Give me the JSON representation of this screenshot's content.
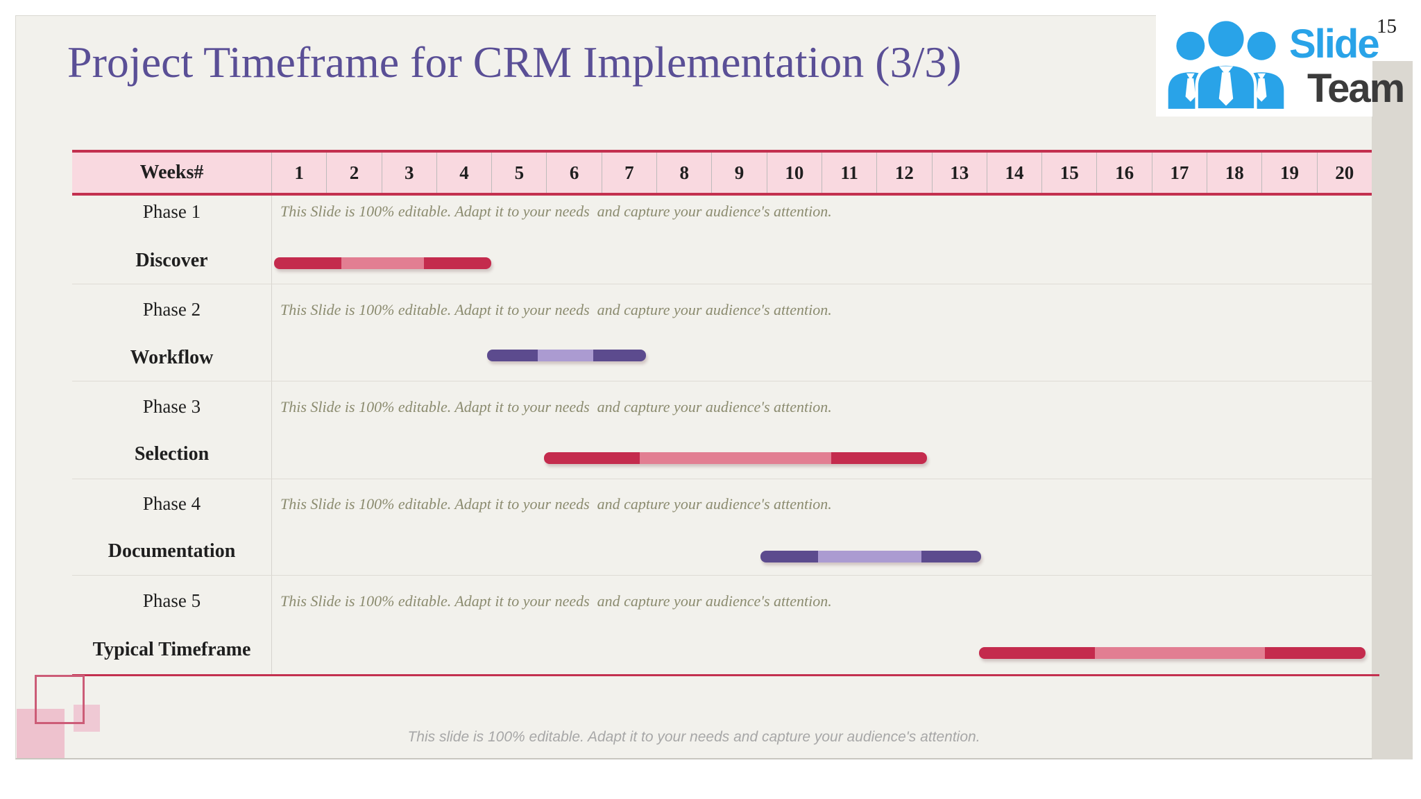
{
  "page_number": "15",
  "title": "Project Timeframe for CRM Implementation (3/3)",
  "logo": {
    "word1": "Slide",
    "word2": "Team"
  },
  "footer": "This slide is 100% editable. Adapt it to your needs and capture your audience's attention.",
  "colors": {
    "title": "#5A4F96",
    "slide_background": "#F2F1EC",
    "header_pink": "#F9D9E0",
    "header_border": "#C3304F",
    "logo_blue": "#29A3E8",
    "logo_dark": "#3B3B3B",
    "note_olive": "#8B8B6F",
    "themes": {
      "red": [
        "#C42B4D",
        "#E27E92",
        "#C42B4D"
      ],
      "purple": [
        "#5C4B8E",
        "#AB9BD1",
        "#5C4B8E"
      ]
    }
  },
  "table": {
    "weeks_label": "Weeks#",
    "weeks": [
      "1",
      "2",
      "3",
      "4",
      "5",
      "6",
      "7",
      "8",
      "9",
      "10",
      "11",
      "12",
      "13",
      "14",
      "15",
      "16",
      "17",
      "18",
      "19",
      "20"
    ],
    "rows": [
      {
        "phase": "Phase 1",
        "task": "Discover",
        "note": "This Slide is 100% editable. Adapt it to your needs  and capture your audience's attention.",
        "bar": {
          "theme": "red",
          "start_week": 0.05,
          "end_week": 4.0,
          "segments": [
            0.31,
            0.38,
            0.31
          ]
        }
      },
      {
        "phase": "Phase 2",
        "task": "Workflow",
        "note": "This Slide is 100% editable. Adapt it to your needs  and capture your audience's attention.",
        "bar": {
          "theme": "purple",
          "start_week": 3.92,
          "end_week": 6.81,
          "segments": [
            0.32,
            0.35,
            0.33
          ]
        }
      },
      {
        "phase": "Phase 3",
        "task": "Selection",
        "note": "This Slide is 100% editable. Adapt it to your needs  and capture your audience's attention.",
        "bar": {
          "theme": "red",
          "start_week": 4.96,
          "end_week": 11.92,
          "segments": [
            0.25,
            0.5,
            0.25
          ]
        }
      },
      {
        "phase": "Phase 4",
        "task": "Documentation",
        "note": "This Slide is 100% editable. Adapt it to your needs  and capture your audience's attention.",
        "bar": {
          "theme": "purple",
          "start_week": 8.89,
          "end_week": 12.9,
          "segments": [
            0.26,
            0.47,
            0.27
          ]
        }
      },
      {
        "phase": "Phase 5",
        "task": "Typical Timeframe",
        "note": "This Slide is 100% editable. Adapt it to your needs  and capture your audience's attention.",
        "bar": {
          "theme": "red",
          "start_week": 12.86,
          "end_week": 19.89,
          "segments": [
            0.3,
            0.44,
            0.26
          ]
        }
      }
    ]
  },
  "chart_data": {
    "type": "bar",
    "variant": "gantt",
    "title": "Project Timeframe for CRM Implementation (3/3)",
    "x_axis": {
      "label": "Weeks#",
      "range": [
        0,
        20
      ],
      "ticks": [
        1,
        2,
        3,
        4,
        5,
        6,
        7,
        8,
        9,
        10,
        11,
        12,
        13,
        14,
        15,
        16,
        17,
        18,
        19,
        20
      ]
    },
    "grid": false,
    "legend": false,
    "tasks": [
      {
        "phase": "Phase 1",
        "name": "Discover",
        "start_week": 0.0,
        "end_week": 4.0,
        "theme": "red"
      },
      {
        "phase": "Phase 2",
        "name": "Workflow",
        "start_week": 3.9,
        "end_week": 6.8,
        "theme": "purple"
      },
      {
        "phase": "Phase 3",
        "name": "Selection",
        "start_week": 5.0,
        "end_week": 11.9,
        "theme": "red"
      },
      {
        "phase": "Phase 4",
        "name": "Documentation",
        "start_week": 8.9,
        "end_week": 12.9,
        "theme": "purple"
      },
      {
        "phase": "Phase 5",
        "name": "Typical Timeframe",
        "start_week": 12.9,
        "end_week": 19.9,
        "theme": "red"
      }
    ]
  }
}
